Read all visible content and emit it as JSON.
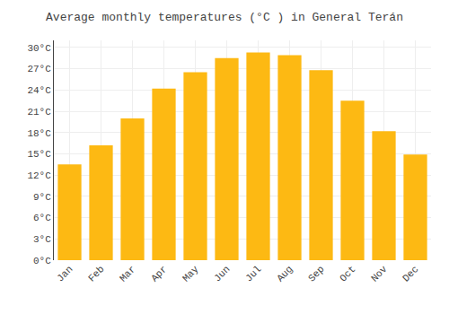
{
  "chart_data": {
    "type": "bar",
    "title": "Average monthly temperatures (°C ) in General Terán",
    "categories": [
      "Jan",
      "Feb",
      "Mar",
      "Apr",
      "May",
      "Jun",
      "Jul",
      "Aug",
      "Sep",
      "Oct",
      "Nov",
      "Dec"
    ],
    "values": [
      13.5,
      16.2,
      20.0,
      24.2,
      26.5,
      28.5,
      29.3,
      28.9,
      26.8,
      22.5,
      18.2,
      14.9
    ],
    "color": "#FDB913",
    "ylim": [
      0,
      31
    ],
    "yticks": [
      {
        "value": 0,
        "label": "0°C"
      },
      {
        "value": 3,
        "label": "3°C"
      },
      {
        "value": 6,
        "label": "6°C"
      },
      {
        "value": 9,
        "label": "9°C"
      },
      {
        "value": 12,
        "label": "12°C"
      },
      {
        "value": 15,
        "label": "15°C"
      },
      {
        "value": 18,
        "label": "18°C"
      },
      {
        "value": 21,
        "label": "21°C"
      },
      {
        "value": 24,
        "label": "24°C"
      },
      {
        "value": 27,
        "label": "27°C"
      },
      {
        "value": 30,
        "label": "30°C"
      }
    ],
    "grid": true
  }
}
